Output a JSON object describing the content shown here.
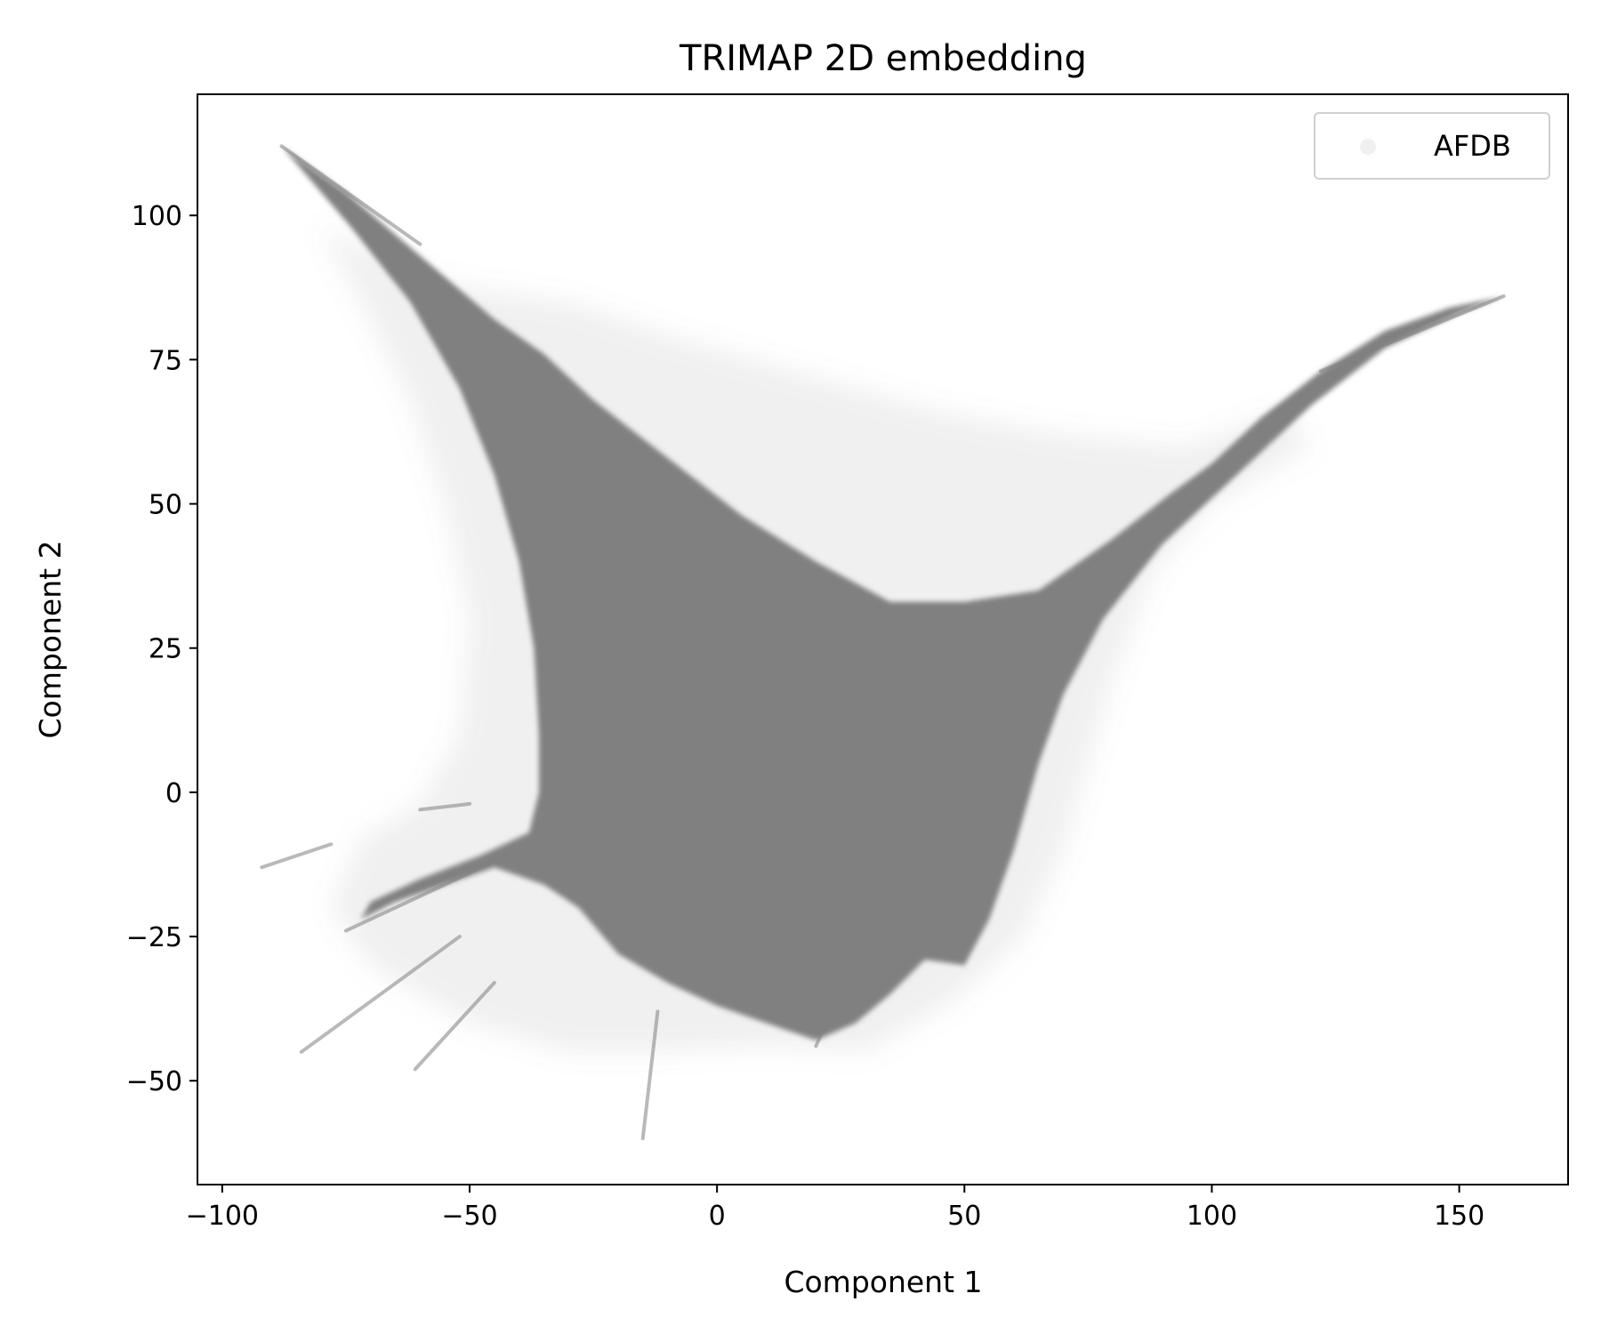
{
  "chart_data": {
    "type": "scatter",
    "title": "TRIMAP 2D embedding",
    "xlabel": "Component 1",
    "ylabel": "Component 2",
    "xlim": [
      -105,
      172
    ],
    "ylim": [
      -68,
      121
    ],
    "xticks": [
      -100,
      -50,
      0,
      50,
      100,
      150
    ],
    "xtick_labels": [
      "−100",
      "−50",
      "0",
      "50",
      "100",
      "150"
    ],
    "yticks": [
      -50,
      -25,
      0,
      25,
      50,
      75,
      100
    ],
    "ytick_labels": [
      "−50",
      "−25",
      "0",
      "25",
      "50",
      "75",
      "100"
    ],
    "grid": false,
    "legend": {
      "position": "top-right",
      "entries": [
        "AFDB"
      ]
    },
    "series": [
      {
        "name": "AFDB",
        "color": "#808080",
        "dense_region": [
          [
            -88,
            112
          ],
          [
            -75,
            104
          ],
          [
            -60,
            93
          ],
          [
            -45,
            82
          ],
          [
            -35,
            76
          ],
          [
            -25,
            68
          ],
          [
            -10,
            58
          ],
          [
            5,
            48
          ],
          [
            20,
            40
          ],
          [
            35,
            33
          ],
          [
            50,
            33
          ],
          [
            65,
            35
          ],
          [
            80,
            44
          ],
          [
            92,
            52
          ],
          [
            100,
            57
          ],
          [
            110,
            65
          ],
          [
            122,
            73
          ],
          [
            135,
            80
          ],
          [
            148,
            84
          ],
          [
            159,
            86
          ],
          [
            150,
            83
          ],
          [
            135,
            77
          ],
          [
            120,
            67
          ],
          [
            105,
            55
          ],
          [
            90,
            43
          ],
          [
            78,
            30
          ],
          [
            70,
            17
          ],
          [
            65,
            5
          ],
          [
            60,
            -10
          ],
          [
            55,
            -22
          ],
          [
            50,
            -30
          ],
          [
            42,
            -29
          ],
          [
            35,
            -35
          ],
          [
            28,
            -40
          ],
          [
            20,
            -43
          ],
          [
            10,
            -40
          ],
          [
            0,
            -37
          ],
          [
            -10,
            -33
          ],
          [
            -20,
            -28
          ],
          [
            -28,
            -20
          ],
          [
            -35,
            -16
          ],
          [
            -45,
            -13
          ],
          [
            -55,
            -16
          ],
          [
            -65,
            -19
          ],
          [
            -72,
            -22
          ],
          [
            -70,
            -19
          ],
          [
            -60,
            -15
          ],
          [
            -48,
            -11
          ],
          [
            -38,
            -7
          ],
          [
            -36,
            0
          ],
          [
            -36,
            10
          ],
          [
            -37,
            25
          ],
          [
            -40,
            40
          ],
          [
            -45,
            55
          ],
          [
            -52,
            70
          ],
          [
            -62,
            85
          ],
          [
            -74,
            98
          ],
          [
            -84,
            108
          ]
        ],
        "sparse_region": [
          [
            -80,
            98
          ],
          [
            -55,
            88
          ],
          [
            -30,
            85
          ],
          [
            -5,
            78
          ],
          [
            20,
            72
          ],
          [
            45,
            66
          ],
          [
            70,
            62
          ],
          [
            95,
            60
          ],
          [
            115,
            66
          ],
          [
            120,
            60
          ],
          [
            100,
            50
          ],
          [
            88,
            38
          ],
          [
            80,
            20
          ],
          [
            75,
            5
          ],
          [
            70,
            -10
          ],
          [
            62,
            -25
          ],
          [
            48,
            -36
          ],
          [
            30,
            -45
          ],
          [
            10,
            -44
          ],
          [
            -10,
            -45
          ],
          [
            -30,
            -45
          ],
          [
            -50,
            -40
          ],
          [
            -70,
            -30
          ],
          [
            -78,
            -20
          ],
          [
            -72,
            -8
          ],
          [
            -60,
            -2
          ],
          [
            -52,
            10
          ],
          [
            -50,
            30
          ],
          [
            -55,
            50
          ],
          [
            -62,
            68
          ],
          [
            -72,
            85
          ]
        ],
        "streaks": [
          [
            [
              -88,
              112
            ],
            [
              -60,
              95
            ]
          ],
          [
            [
              -92,
              -13
            ],
            [
              -78,
              -9
            ]
          ],
          [
            [
              -75,
              -24
            ],
            [
              -45,
              -12
            ]
          ],
          [
            [
              -84,
              -45
            ],
            [
              -52,
              -25
            ]
          ],
          [
            [
              -61,
              -48
            ],
            [
              -45,
              -33
            ]
          ],
          [
            [
              -15,
              -60
            ],
            [
              -12,
              -38
            ]
          ],
          [
            [
              -60,
              -3
            ],
            [
              -50,
              -2
            ]
          ],
          [
            [
              122,
              73
            ],
            [
              159,
              86
            ]
          ],
          [
            [
              20,
              -44
            ],
            [
              22,
              -40
            ]
          ]
        ]
      }
    ]
  }
}
